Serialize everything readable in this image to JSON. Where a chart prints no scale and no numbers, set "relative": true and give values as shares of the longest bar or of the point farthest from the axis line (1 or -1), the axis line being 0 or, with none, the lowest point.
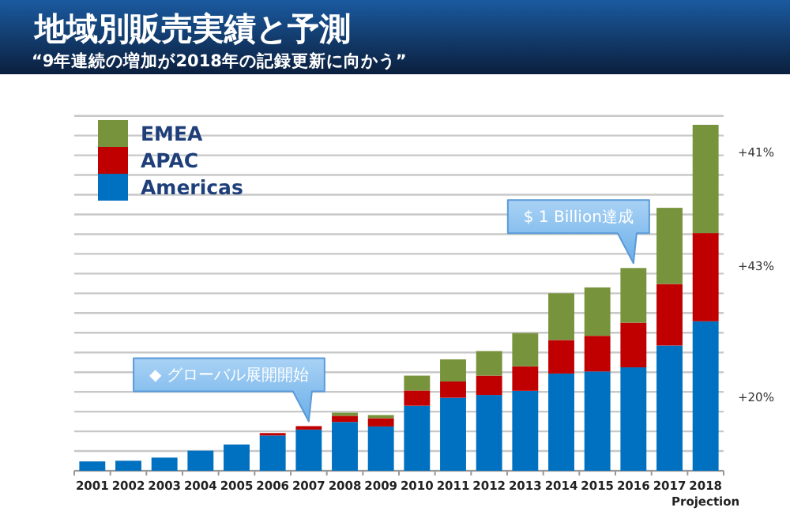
{
  "chart_data": {
    "type": "bar",
    "stacked": true,
    "relative": true,
    "title": "地域別販売実績と予測",
    "subtitle": "“9年連続の増加が2018年の記録更新に向かう”",
    "categories": [
      "2001",
      "2002",
      "2003",
      "2004",
      "2005",
      "2006",
      "2007",
      "2008",
      "2009",
      "2010",
      "2011",
      "2012",
      "2013",
      "2014",
      "2015",
      "2016",
      "2017",
      "2018\nProjection"
    ],
    "series": [
      {
        "name": "Americas",
        "color": "#0070c0",
        "values": [
          0.027,
          0.029,
          0.038,
          0.058,
          0.076,
          0.102,
          0.119,
          0.141,
          0.128,
          0.188,
          0.211,
          0.219,
          0.231,
          0.281,
          0.287,
          0.299,
          0.362,
          0.432
        ]
      },
      {
        "name": "APAC",
        "color": "#c00000",
        "values": [
          null,
          null,
          null,
          null,
          null,
          0.007,
          0.01,
          0.018,
          0.024,
          0.044,
          0.047,
          0.056,
          0.071,
          0.097,
          0.103,
          0.129,
          0.178,
          0.255
        ]
      },
      {
        "name": "EMEA",
        "color": "#77933c",
        "values": [
          null,
          null,
          null,
          null,
          null,
          null,
          null,
          0.009,
          0.009,
          0.043,
          0.064,
          0.071,
          0.096,
          0.135,
          0.14,
          0.158,
          0.22,
          0.313
        ]
      }
    ],
    "annotations": [
      "+41%",
      "+43%",
      "+20%",
      {
        "text": "◆  グローバル展開開始",
        "x": "2007",
        "y": 0.129
      },
      {
        "text": "$ 1 Billion達成",
        "x": "2016",
        "y": 0.586
      }
    ],
    "legend": "top left",
    "grid": "y"
  }
}
